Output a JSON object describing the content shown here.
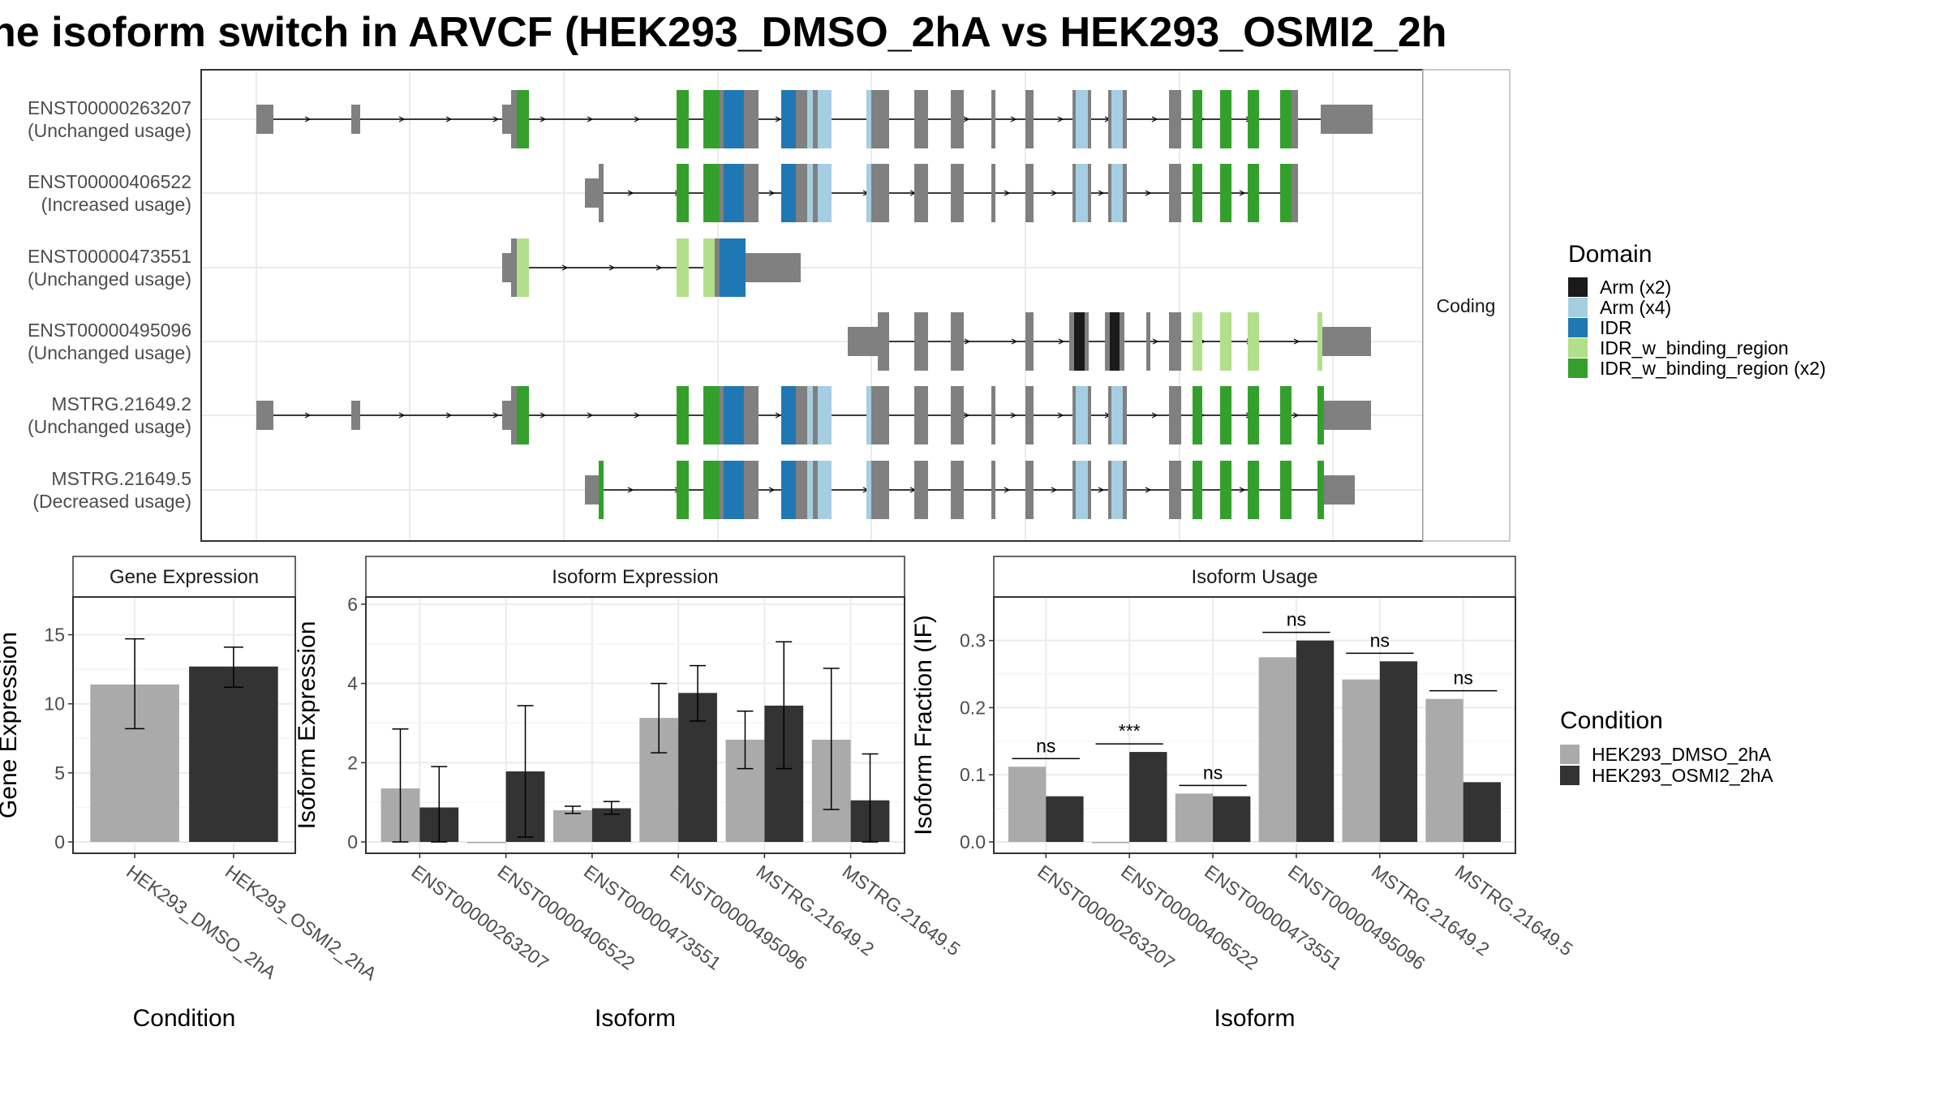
{
  "title": "ne isoform switch in ARVCF (HEK293_DMSO_2hA vs HEK293_OSMI2_2h",
  "colors": {
    "gray_exon": "#808080",
    "arm_x2": "#1a1a1a",
    "arm_x4": "#a6cee3",
    "idr": "#1f78b4",
    "idr_binding": "#b2df8a",
    "idr_binding_x2": "#33a02c",
    "dmso": "#aaaaaa",
    "osmi2": "#333333",
    "strip_bg": "#ffffff",
    "grid": "#ebebeb",
    "frame": "#333333",
    "text": "#4d4d4d"
  },
  "structure_panel": {
    "strip_label": "Coding",
    "transcripts": [
      {
        "id": "ENST00000263207",
        "usage": "(Unchanged usage)"
      },
      {
        "id": "ENST00000406522",
        "usage": "(Increased usage)"
      },
      {
        "id": "ENST00000473551",
        "usage": "(Unchanged usage)"
      },
      {
        "id": "ENST00000495096",
        "usage": "(Unchanged usage)"
      },
      {
        "id": "MSTRG.21649.2",
        "usage": "(Unchanged usage)"
      },
      {
        "id": "MSTRG.21649.5",
        "usage": "(Decreased usage)"
      }
    ]
  },
  "domain_legend": {
    "title": "Domain",
    "items": [
      {
        "label": "Arm (x2)",
        "color": "#1a1a1a"
      },
      {
        "label": "Arm (x4)",
        "color": "#a6cee3"
      },
      {
        "label": "IDR",
        "color": "#1f78b4"
      },
      {
        "label": "IDR_w_binding_region",
        "color": "#b2df8a"
      },
      {
        "label": "IDR_w_binding_region (x2)",
        "color": "#33a02c"
      }
    ]
  },
  "condition_legend": {
    "title": "Condition",
    "items": [
      {
        "label": "HEK293_DMSO_2hA",
        "color": "#aaaaaa"
      },
      {
        "label": "HEK293_OSMI2_2hA",
        "color": "#333333"
      }
    ]
  },
  "chart_data": [
    {
      "type": "bar",
      "title": "Gene Expression",
      "xlabel": "Condition",
      "ylabel": "Gene Expression",
      "ylim": [
        0,
        17.5
      ],
      "yticks": [
        0,
        5,
        10,
        15
      ],
      "categories": [
        "HEK293_DMSO_2hA",
        "HEK293_OSMI2_2hA"
      ],
      "series": [
        {
          "name": "HEK293_DMSO_2hA",
          "values": [
            11.4,
            null
          ],
          "err_low": [
            8.2,
            null
          ],
          "err_high": [
            14.7,
            null
          ]
        },
        {
          "name": "HEK293_OSMI2_2hA",
          "values": [
            null,
            12.7
          ],
          "err_low": [
            null,
            11.2
          ],
          "err_high": [
            null,
            14.1
          ]
        }
      ]
    },
    {
      "type": "bar",
      "title": "Isoform Expression",
      "xlabel": "Isoform",
      "ylabel": "Isoform Expression",
      "ylim": [
        0,
        6.1
      ],
      "yticks": [
        0,
        2,
        4,
        6
      ],
      "categories": [
        "ENST00000263207",
        "ENST00000406522",
        "ENST00000473551",
        "ENST00000495096",
        "MSTRG.21649.2",
        "MSTRG.21649.5"
      ],
      "series": [
        {
          "name": "HEK293_DMSO_2hA",
          "values": [
            1.35,
            0.0,
            0.8,
            3.13,
            2.58,
            2.58
          ],
          "err_low": [
            0.0,
            0.0,
            0.72,
            2.25,
            1.85,
            0.82
          ],
          "err_high": [
            2.85,
            0.0,
            0.9,
            4.0,
            3.3,
            4.38
          ]
        },
        {
          "name": "HEK293_OSMI2_2hA",
          "values": [
            0.87,
            1.78,
            0.85,
            3.76,
            3.44,
            1.05
          ],
          "err_low": [
            0.0,
            0.12,
            0.7,
            3.05,
            1.85,
            0.0
          ],
          "err_high": [
            1.9,
            3.44,
            1.02,
            4.45,
            5.05,
            2.22
          ]
        }
      ]
    },
    {
      "type": "bar",
      "title": "Isoform Usage",
      "xlabel": "Isoform",
      "ylabel": "Isoform Fraction (IF)",
      "ylim": [
        0,
        0.36
      ],
      "yticks": [
        0.0,
        0.1,
        0.2,
        0.3
      ],
      "yticklabels": [
        "0.0",
        "0.1",
        "0.2",
        "0.3"
      ],
      "categories": [
        "ENST00000263207",
        "ENST00000406522",
        "ENST00000473551",
        "ENST00000495096",
        "MSTRG.21649.2",
        "MSTRG.21649.5"
      ],
      "series": [
        {
          "name": "HEK293_DMSO_2hA",
          "values": [
            0.112,
            0.0,
            0.072,
            0.275,
            0.242,
            0.213
          ]
        },
        {
          "name": "HEK293_OSMI2_2hA",
          "values": [
            0.068,
            0.134,
            0.068,
            0.3,
            0.269,
            0.089
          ]
        }
      ],
      "significance": [
        "ns",
        "***",
        "ns",
        "ns",
        "ns",
        "ns"
      ]
    }
  ]
}
